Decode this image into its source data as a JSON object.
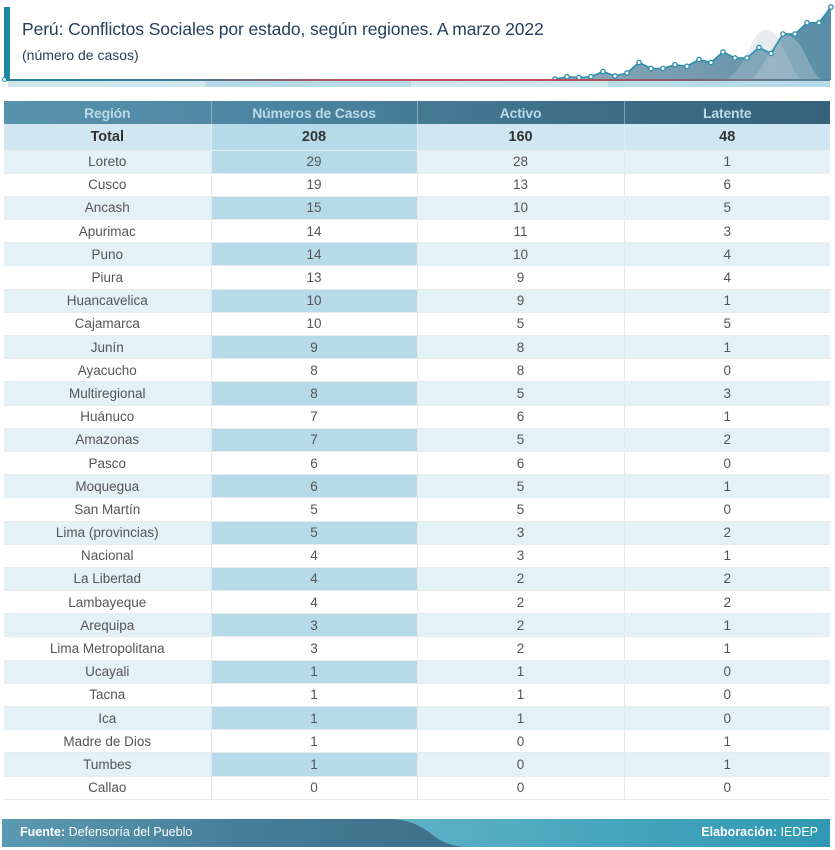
{
  "header": {
    "title": "Perú: Conflictos Sociales por estado, según regiones. A marzo 2022",
    "subtitle": "(número de casos)",
    "accent_color": "#1f86a1"
  },
  "table": {
    "columns": [
      "Región",
      "Números de Casos",
      "Activo",
      "Latente"
    ],
    "total": {
      "region": "Total",
      "casos": "208",
      "activo": "160",
      "latente": "48"
    },
    "rows": [
      {
        "region": "Loreto",
        "casos": "29",
        "activo": "28",
        "latente": "1"
      },
      {
        "region": "Cusco",
        "casos": "19",
        "activo": "13",
        "latente": "6"
      },
      {
        "region": "Ancash",
        "casos": "15",
        "activo": "10",
        "latente": "5"
      },
      {
        "region": "Apurimac",
        "casos": "14",
        "activo": "11",
        "latente": "3"
      },
      {
        "region": "Puno",
        "casos": "14",
        "activo": "10",
        "latente": "4"
      },
      {
        "region": "Piura",
        "casos": "13",
        "activo": "9",
        "latente": "4"
      },
      {
        "region": "Huancavelica",
        "casos": "10",
        "activo": "9",
        "latente": "1"
      },
      {
        "region": "Cajamarca",
        "casos": "10",
        "activo": "5",
        "latente": "5"
      },
      {
        "region": "Junín",
        "casos": "9",
        "activo": "8",
        "latente": "1"
      },
      {
        "region": "Ayacucho",
        "casos": "8",
        "activo": "8",
        "latente": "0"
      },
      {
        "region": "Multiregional",
        "casos": "8",
        "activo": "5",
        "latente": "3"
      },
      {
        "region": "Huánuco",
        "casos": "7",
        "activo": "6",
        "latente": "1"
      },
      {
        "region": "Amazonas",
        "casos": "7",
        "activo": "5",
        "latente": "2"
      },
      {
        "region": "Pasco",
        "casos": "6",
        "activo": "6",
        "latente": "0"
      },
      {
        "region": "Moquegua",
        "casos": "6",
        "activo": "5",
        "latente": "1"
      },
      {
        "region": "San Martín",
        "casos": "5",
        "activo": "5",
        "latente": "0"
      },
      {
        "region": "Lima (provincias)",
        "casos": "5",
        "activo": "3",
        "latente": "2"
      },
      {
        "region": "Nacional",
        "casos": "4",
        "activo": "3",
        "latente": "1"
      },
      {
        "region": "La Libertad",
        "casos": "4",
        "activo": "2",
        "latente": "2"
      },
      {
        "region": "Lambayeque",
        "casos": "4",
        "activo": "2",
        "latente": "2"
      },
      {
        "region": "Arequipa",
        "casos": "3",
        "activo": "2",
        "latente": "1"
      },
      {
        "region": "Lima Metropolitana",
        "casos": "3",
        "activo": "2",
        "latente": "1"
      },
      {
        "region": "Ucayali",
        "casos": "1",
        "activo": "1",
        "latente": "0"
      },
      {
        "region": "Tacna",
        "casos": "1",
        "activo": "1",
        "latente": "0"
      },
      {
        "region": "Ica",
        "casos": "1",
        "activo": "1",
        "latente": "0"
      },
      {
        "region": "Madre de Dios",
        "casos": "1",
        "activo": "0",
        "latente": "1"
      },
      {
        "region": "Tumbes",
        "casos": "1",
        "activo": "0",
        "latente": "1"
      },
      {
        "region": "Callao",
        "casos": "0",
        "activo": "0",
        "latente": "0"
      }
    ]
  },
  "footer": {
    "source_label": "Fuente:",
    "source_value": "Defensoría del Pueblo",
    "credit_label": "Elaboración:",
    "credit_value": "IEDEP"
  },
  "chart_data": {
    "type": "table",
    "title": "Perú: Conflictos Sociales por estado, según regiones. A marzo 2022",
    "subtitle": "(número de casos)",
    "columns": [
      "Región",
      "Números de Casos",
      "Activo",
      "Latente"
    ],
    "total": [
      "Total",
      208,
      160,
      48
    ],
    "rows": [
      [
        "Loreto",
        29,
        28,
        1
      ],
      [
        "Cusco",
        19,
        13,
        6
      ],
      [
        "Ancash",
        15,
        10,
        5
      ],
      [
        "Apurimac",
        14,
        11,
        3
      ],
      [
        "Puno",
        14,
        10,
        4
      ],
      [
        "Piura",
        13,
        9,
        4
      ],
      [
        "Huancavelica",
        10,
        9,
        1
      ],
      [
        "Cajamarca",
        10,
        5,
        5
      ],
      [
        "Junín",
        9,
        8,
        1
      ],
      [
        "Ayacucho",
        8,
        8,
        0
      ],
      [
        "Multiregional",
        8,
        5,
        3
      ],
      [
        "Huánuco",
        7,
        6,
        1
      ],
      [
        "Amazonas",
        7,
        5,
        2
      ],
      [
        "Pasco",
        6,
        6,
        0
      ],
      [
        "Moquegua",
        6,
        5,
        1
      ],
      [
        "San Martín",
        5,
        5,
        0
      ],
      [
        "Lima (provincias)",
        5,
        3,
        2
      ],
      [
        "Nacional",
        4,
        3,
        1
      ],
      [
        "La Libertad",
        4,
        2,
        2
      ],
      [
        "Lambayeque",
        4,
        2,
        2
      ],
      [
        "Arequipa",
        3,
        2,
        1
      ],
      [
        "Lima Metropolitana",
        3,
        2,
        1
      ],
      [
        "Ucayali",
        1,
        1,
        0
      ],
      [
        "Tacna",
        1,
        1,
        0
      ],
      [
        "Ica",
        1,
        1,
        0
      ],
      [
        "Madre de Dios",
        1,
        0,
        1
      ],
      [
        "Tumbes",
        1,
        0,
        1
      ],
      [
        "Callao",
        0,
        0,
        0
      ]
    ],
    "decorative_sparkline": {
      "description": "decorative rising line with markers in header, no axis",
      "values": [
        0,
        0.3,
        0.2,
        0.3,
        1,
        0.4,
        0.8,
        2.2,
        1.4,
        1.4,
        1.9,
        1.7,
        2.6,
        2.2,
        3.6,
        2.8,
        2.8,
        4.2,
        3.4,
        6,
        6,
        7.5,
        7.5,
        9.6
      ]
    },
    "legend": "none"
  }
}
